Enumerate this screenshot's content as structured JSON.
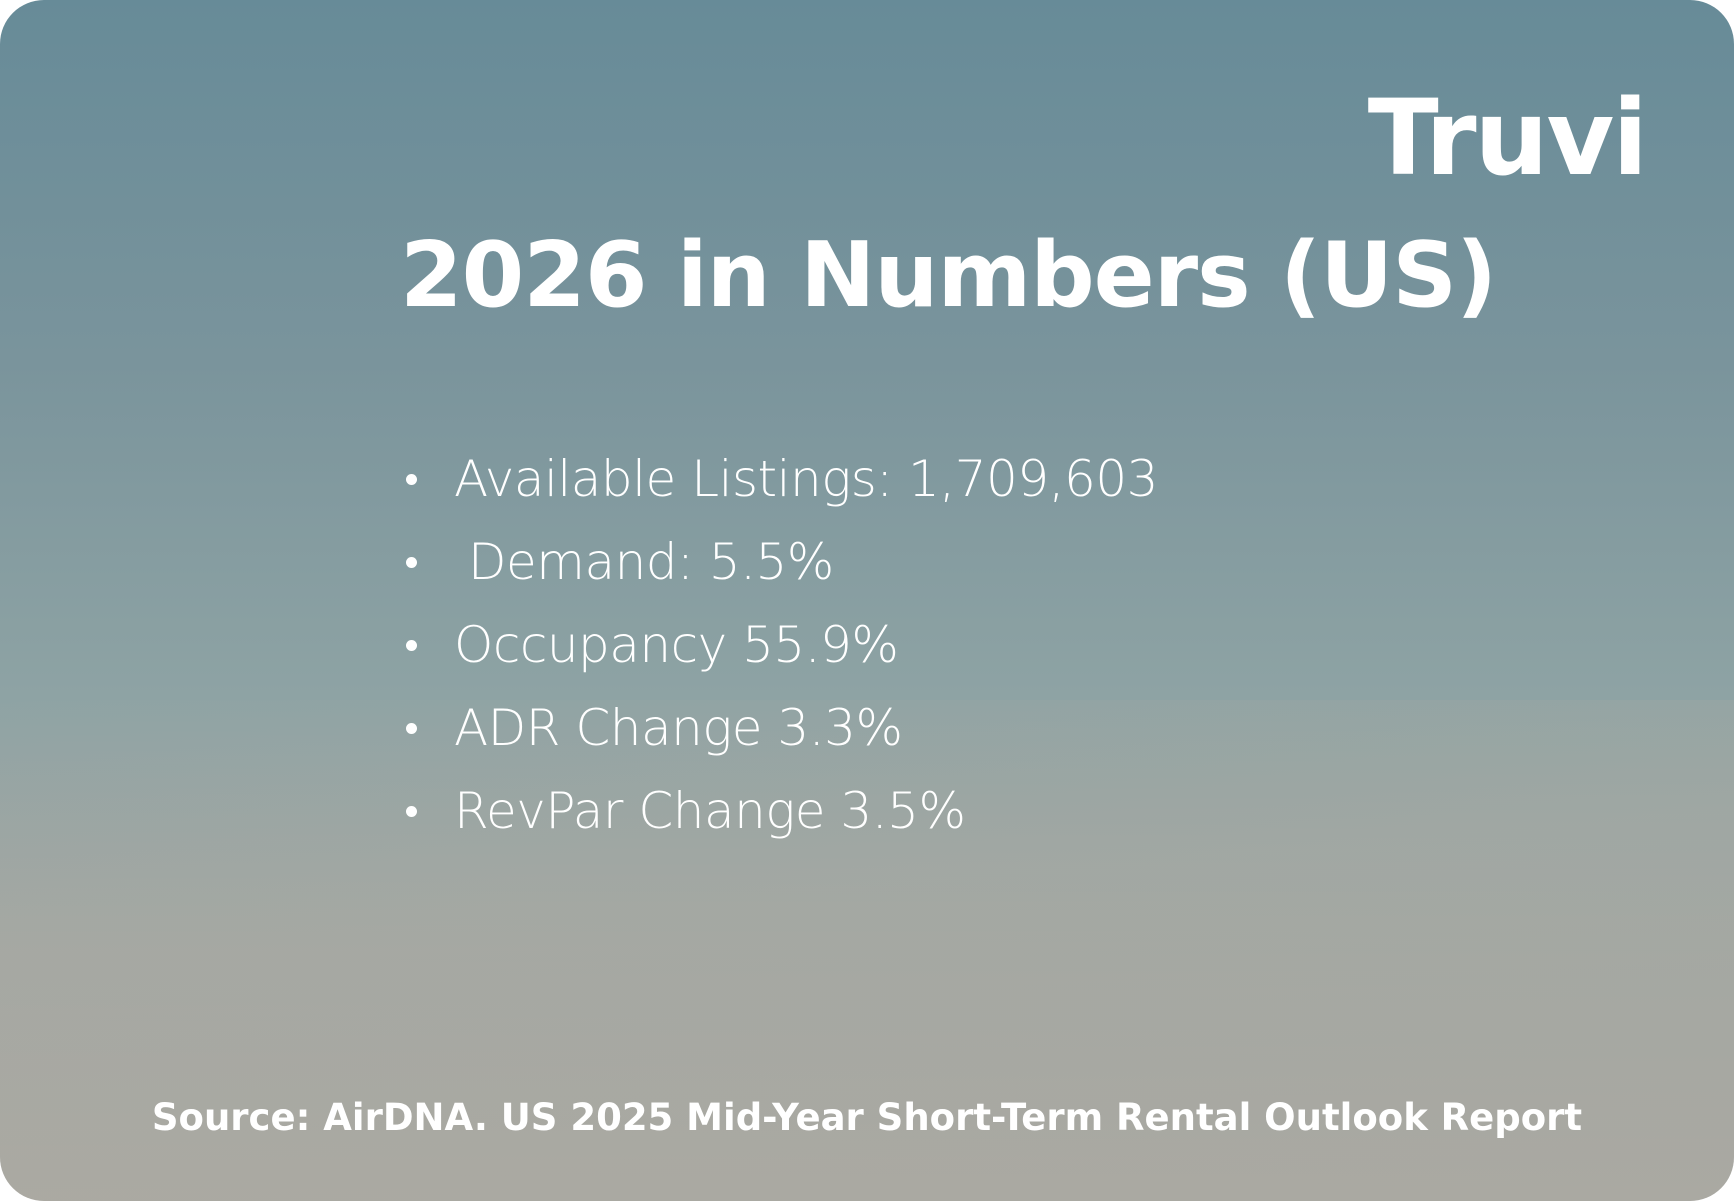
{
  "logo": "Truvi",
  "title": "2026 in Numbers (US)",
  "items": [
    "Available Listings: 1,709,603",
    "Demand: 5.5%",
    "Occupancy 55.9%",
    "ADR Change 3.3%",
    "RevPar Change 3.5%"
  ],
  "source": "Source: AirDNA. US 2025 Mid-Year Short-Term Rental Outlook Report"
}
